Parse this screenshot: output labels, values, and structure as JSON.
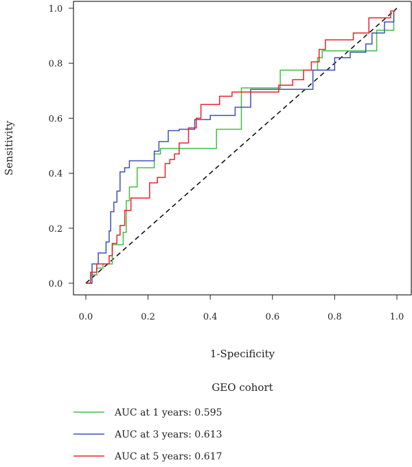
{
  "chart_data": {
    "type": "line",
    "title": "",
    "xlabel": "1-Specificity",
    "ylabel": "Sensitivity",
    "xlim": [
      0,
      1
    ],
    "ylim": [
      0,
      1
    ],
    "xticks": [
      "0.0",
      "0.2",
      "0.4",
      "0.6",
      "0.8",
      "1.0"
    ],
    "yticks": [
      "0.0",
      "0.2",
      "0.4",
      "0.6",
      "0.8",
      "1.0"
    ],
    "grid": false,
    "diagonal_reference": true,
    "legend_title": "GEO cohort",
    "legend_placement": "below",
    "series": [
      {
        "name": "AUC at 1 years: 0.595",
        "color": "#3fbf3f",
        "x": [
          0,
          0.015,
          0.015,
          0.035,
          0.035,
          0.055,
          0.055,
          0.085,
          0.085,
          0.12,
          0.12,
          0.13,
          0.13,
          0.14,
          0.14,
          0.165,
          0.165,
          0.22,
          0.22,
          0.24,
          0.24,
          0.42,
          0.42,
          0.5,
          0.5,
          0.625,
          0.625,
          0.745,
          0.745,
          0.76,
          0.76,
          0.935,
          0.935,
          0.99,
          0.99
        ],
        "y": [
          0,
          0,
          0.03,
          0.03,
          0.055,
          0.055,
          0.07,
          0.07,
          0.14,
          0.14,
          0.185,
          0.185,
          0.3,
          0.3,
          0.35,
          0.35,
          0.42,
          0.42,
          0.47,
          0.47,
          0.49,
          0.49,
          0.56,
          0.56,
          0.71,
          0.71,
          0.775,
          0.775,
          0.82,
          0.82,
          0.845,
          0.845,
          0.92,
          0.92,
          0.99
        ]
      },
      {
        "name": "AUC at 3 years: 0.613",
        "color": "#3b4fbf",
        "x": [
          0,
          0.02,
          0.02,
          0.04,
          0.04,
          0.065,
          0.065,
          0.075,
          0.075,
          0.08,
          0.08,
          0.09,
          0.09,
          0.1,
          0.1,
          0.11,
          0.11,
          0.125,
          0.125,
          0.14,
          0.14,
          0.22,
          0.22,
          0.235,
          0.235,
          0.265,
          0.265,
          0.3,
          0.3,
          0.35,
          0.35,
          0.4,
          0.4,
          0.48,
          0.48,
          0.53,
          0.53,
          0.73,
          0.73,
          0.8,
          0.8,
          0.85,
          0.85,
          0.9,
          0.9,
          0.92,
          0.92,
          0.96,
          0.96,
          0.99,
          0.99
        ],
        "y": [
          0,
          0,
          0.07,
          0.07,
          0.11,
          0.11,
          0.15,
          0.15,
          0.19,
          0.19,
          0.26,
          0.26,
          0.295,
          0.295,
          0.335,
          0.335,
          0.405,
          0.405,
          0.42,
          0.42,
          0.445,
          0.445,
          0.48,
          0.48,
          0.515,
          0.515,
          0.555,
          0.555,
          0.56,
          0.56,
          0.595,
          0.595,
          0.61,
          0.61,
          0.64,
          0.64,
          0.705,
          0.705,
          0.775,
          0.775,
          0.82,
          0.82,
          0.84,
          0.84,
          0.87,
          0.87,
          0.91,
          0.91,
          0.95,
          0.95,
          0.99
        ]
      },
      {
        "name": "AUC at 5 years: 0.617",
        "color": "#e8202a",
        "x": [
          0,
          0.015,
          0.015,
          0.035,
          0.035,
          0.075,
          0.075,
          0.085,
          0.085,
          0.1,
          0.1,
          0.11,
          0.11,
          0.125,
          0.125,
          0.145,
          0.145,
          0.205,
          0.205,
          0.23,
          0.23,
          0.255,
          0.255,
          0.27,
          0.27,
          0.285,
          0.285,
          0.3,
          0.3,
          0.33,
          0.33,
          0.355,
          0.355,
          0.37,
          0.37,
          0.43,
          0.43,
          0.47,
          0.47,
          0.62,
          0.62,
          0.665,
          0.665,
          0.7,
          0.7,
          0.725,
          0.725,
          0.75,
          0.75,
          0.77,
          0.77,
          0.86,
          0.86,
          0.91,
          0.91,
          0.98,
          0.98,
          0.995
        ],
        "y": [
          0,
          0,
          0.04,
          0.04,
          0.07,
          0.07,
          0.1,
          0.1,
          0.145,
          0.145,
          0.175,
          0.175,
          0.21,
          0.21,
          0.265,
          0.265,
          0.31,
          0.31,
          0.365,
          0.365,
          0.385,
          0.385,
          0.435,
          0.435,
          0.45,
          0.45,
          0.47,
          0.47,
          0.51,
          0.51,
          0.565,
          0.565,
          0.6,
          0.6,
          0.65,
          0.65,
          0.68,
          0.68,
          0.695,
          0.695,
          0.72,
          0.72,
          0.74,
          0.74,
          0.775,
          0.775,
          0.805,
          0.805,
          0.85,
          0.85,
          0.885,
          0.885,
          0.91,
          0.91,
          0.965,
          0.965,
          0.99,
          0.99
        ]
      }
    ]
  }
}
